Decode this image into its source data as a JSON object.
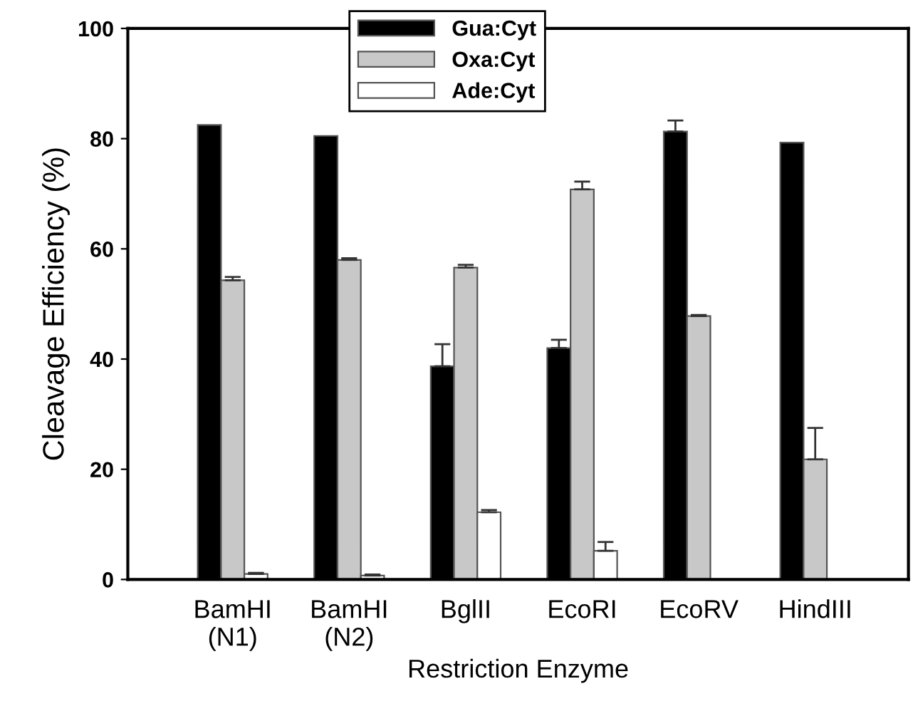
{
  "chart_data": {
    "type": "bar",
    "xlabel": "Restriction Enzyme",
    "ylabel": "Cleavage Efficiency (%)",
    "categories": [
      "BamHI\n(N1)",
      "BamHI\n(N2)",
      "BglII",
      "EcoRI",
      "EcoRV",
      "HindIII"
    ],
    "series": [
      {
        "name": "Gua:Cyt",
        "color": "#000000",
        "values": [
          82.5,
          80.5,
          38.7,
          42,
          81.3,
          79.3
        ],
        "errors": [
          null,
          null,
          4,
          1.5,
          2,
          null
        ]
      },
      {
        "name": "Oxa:Cyt",
        "color": "#c8c8c8",
        "values": [
          54.3,
          58,
          56.6,
          70.8,
          47.8,
          21.8
        ],
        "errors": [
          0.6,
          0.3,
          0.5,
          1.4,
          0.2,
          5.7
        ]
      },
      {
        "name": "Ade:Cyt",
        "color": "#ffffff",
        "values": [
          1,
          0.7,
          12.2,
          5.2,
          null,
          null
        ],
        "errors": [
          0.2,
          0.2,
          0.4,
          1.6,
          null,
          null
        ]
      }
    ],
    "ylim": [
      0,
      100
    ],
    "yticks": [
      0,
      20,
      40,
      60,
      80,
      100
    ],
    "grid": false,
    "legend": "top"
  }
}
